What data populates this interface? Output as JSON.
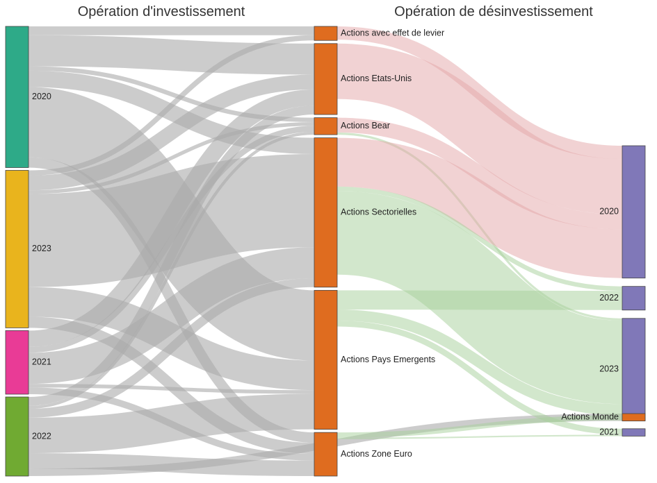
{
  "chart_data": {
    "type": "sankey",
    "columns": [
      {
        "title": "Opération d'investissement"
      },
      {
        "title": ""
      },
      {
        "title": "Opération de désinvestissement"
      }
    ],
    "nodes": [
      {
        "id": "inv2020",
        "label": "2020",
        "col": 0,
        "color": "#2eaa88"
      },
      {
        "id": "inv2023",
        "label": "2023",
        "col": 0,
        "color": "#e9b41d"
      },
      {
        "id": "inv2021",
        "label": "2021",
        "col": 0,
        "color": "#e93b96"
      },
      {
        "id": "inv2022",
        "label": "2022",
        "col": 0,
        "color": "#70aa32"
      },
      {
        "id": "levier",
        "label": "Actions avec effet de levier",
        "col": 1,
        "color": "#df6c1f"
      },
      {
        "id": "usa",
        "label": "Actions Etats-Unis",
        "col": 1,
        "color": "#df6c1f"
      },
      {
        "id": "bear",
        "label": "Actions Bear",
        "col": 1,
        "color": "#df6c1f"
      },
      {
        "id": "sect",
        "label": "Actions Sectorielles",
        "col": 1,
        "color": "#df6c1f"
      },
      {
        "id": "emerg",
        "label": "Actions Pays Emergents",
        "col": 1,
        "color": "#df6c1f"
      },
      {
        "id": "euro",
        "label": "Actions Zone Euro",
        "col": 1,
        "color": "#df6c1f"
      },
      {
        "id": "des2020",
        "label": "2020",
        "col": 2,
        "color": "#8078b8"
      },
      {
        "id": "des2022",
        "label": "2022",
        "col": 2,
        "color": "#8078b8"
      },
      {
        "id": "des2023",
        "label": "2023",
        "col": 2,
        "color": "#8078b8"
      },
      {
        "id": "des2021",
        "label": "2021",
        "col": 2,
        "color": "#8078b8"
      },
      {
        "id": "monde",
        "label": "Actions Monde",
        "col": 2,
        "color": "#df6c1f"
      }
    ],
    "links": [
      {
        "source": "inv2020",
        "target": "levier",
        "value": 12
      },
      {
        "source": "inv2020",
        "target": "usa",
        "value": 42
      },
      {
        "source": "inv2020",
        "target": "bear",
        "value": 6
      },
      {
        "source": "inv2020",
        "target": "sect",
        "value": 22
      },
      {
        "source": "inv2020",
        "target": "emerg",
        "value": 95
      },
      {
        "source": "inv2020",
        "target": "euro",
        "value": 14
      },
      {
        "source": "inv2023",
        "target": "levier",
        "value": 7
      },
      {
        "source": "inv2023",
        "target": "usa",
        "value": 20
      },
      {
        "source": "inv2023",
        "target": "bear",
        "value": 5
      },
      {
        "source": "inv2023",
        "target": "sect",
        "value": 126
      },
      {
        "source": "inv2023",
        "target": "emerg",
        "value": 40
      },
      {
        "source": "inv2023",
        "target": "euro",
        "value": 15
      },
      {
        "source": "inv2021",
        "target": "usa",
        "value": 22
      },
      {
        "source": "inv2021",
        "target": "bear",
        "value": 8
      },
      {
        "source": "inv2021",
        "target": "sect",
        "value": 42
      },
      {
        "source": "inv2021",
        "target": "emerg",
        "value": 5
      },
      {
        "source": "inv2021",
        "target": "euro",
        "value": 9
      },
      {
        "source": "inv2022",
        "target": "usa",
        "value": 12
      },
      {
        "source": "inv2022",
        "target": "bear",
        "value": 4
      },
      {
        "source": "inv2022",
        "target": "sect",
        "value": 12
      },
      {
        "source": "inv2022",
        "target": "emerg",
        "value": 48
      },
      {
        "source": "inv2022",
        "target": "euro",
        "value": 21
      },
      {
        "source": "inv2022",
        "target": "monde",
        "value": 10
      },
      {
        "source": "levier",
        "target": "des2020",
        "value": 18
      },
      {
        "source": "usa",
        "target": "des2020",
        "value": 75
      },
      {
        "source": "bear",
        "target": "des2020",
        "value": 20
      },
      {
        "source": "bear",
        "target": "des2023",
        "value": 3
      },
      {
        "source": "sect",
        "target": "des2020",
        "value": 66
      },
      {
        "source": "sect",
        "target": "des2022",
        "value": 6
      },
      {
        "source": "sect",
        "target": "des2023",
        "value": 113
      },
      {
        "source": "emerg",
        "target": "des2022",
        "value": 26
      },
      {
        "source": "emerg",
        "target": "des2023",
        "value": 15
      },
      {
        "source": "emerg",
        "target": "des2021",
        "value": 8
      },
      {
        "source": "euro",
        "target": "des2023",
        "value": 7
      },
      {
        "source": "euro",
        "target": "des2021",
        "value": 2
      },
      {
        "source": "monde",
        "target": "monde_out",
        "value": 0
      }
    ],
    "link_colors": {
      "inflow": "#aaaaaa",
      "outflow_2020": "#e3a5a8",
      "outflow_other": "#a6cf99"
    }
  }
}
